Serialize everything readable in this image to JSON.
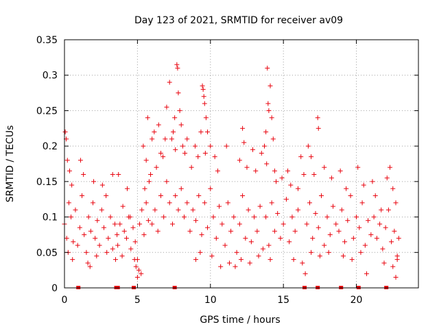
{
  "chart_data": {
    "type": "scatter",
    "title": "Day 123 of 2021, SRMTID for receiver av09",
    "xlabel": "GPS time / hours",
    "ylabel": "SRMTID / TECUs",
    "xlim": [
      0,
      24.25
    ],
    "ylim": [
      0,
      0.35
    ],
    "x_ticks": [
      0,
      5,
      10,
      15,
      20
    ],
    "x_tick_labels": [
      "0",
      "5",
      "10",
      "15",
      "20"
    ],
    "y_ticks": [
      0,
      0.05,
      0.1,
      0.15,
      0.2,
      0.25,
      0.3,
      0.35
    ],
    "y_tick_labels": [
      "0",
      "0.05",
      "0.1",
      "0.15",
      "0.2",
      "0.25",
      "0.3",
      "0.35"
    ],
    "grid": true,
    "marker": "plus",
    "marker_color": "#e8000b",
    "grid_color": "#a0a0a0",
    "series": [
      {
        "name": "SRMTID",
        "points": [
          [
            0.0,
            0.09
          ],
          [
            0.15,
            0.07
          ],
          [
            0.3,
            0.12
          ],
          [
            0.45,
            0.1
          ],
          [
            0.6,
            0.065
          ],
          [
            0.75,
            0.11
          ],
          [
            0.9,
            0.06
          ],
          [
            1.05,
            0.085
          ],
          [
            1.2,
            0.13
          ],
          [
            1.35,
            0.075
          ],
          [
            1.5,
            0.05
          ],
          [
            1.65,
            0.1
          ],
          [
            1.8,
            0.08
          ],
          [
            1.95,
            0.12
          ],
          [
            2.1,
            0.07
          ],
          [
            2.25,
            0.095
          ],
          [
            2.4,
            0.06
          ],
          [
            2.55,
            0.11
          ],
          [
            2.7,
            0.085
          ],
          [
            2.85,
            0.13
          ],
          [
            3.0,
            0.07
          ],
          [
            3.15,
            0.1
          ],
          [
            3.3,
            0.055
          ],
          [
            3.45,
            0.09
          ],
          [
            3.6,
            0.075
          ],
          [
            0.05,
            0.22
          ],
          [
            0.12,
            0.21
          ],
          [
            0.2,
            0.18
          ],
          [
            0.35,
            0.165
          ],
          [
            0.5,
            0.145
          ],
          [
            1.1,
            0.18
          ],
          [
            1.3,
            0.16
          ],
          [
            2.0,
            0.15
          ],
          [
            2.6,
            0.145
          ],
          [
            3.3,
            0.16
          ],
          [
            0.25,
            0.05
          ],
          [
            0.55,
            0.04
          ],
          [
            1.6,
            0.035
          ],
          [
            1.75,
            0.03
          ],
          [
            2.2,
            0.045
          ],
          [
            2.9,
            0.05
          ],
          [
            3.5,
            0.04
          ],
          [
            3.65,
            0.06
          ],
          [
            3.8,
            0.09
          ],
          [
            3.95,
            0.045
          ],
          [
            4.1,
            0.08
          ],
          [
            4.25,
            0.07
          ],
          [
            4.4,
            0.1
          ],
          [
            4.55,
            0.055
          ],
          [
            4.7,
            0.085
          ],
          [
            4.85,
            0.065
          ],
          [
            5.0,
            0.04
          ],
          [
            5.15,
            0.09
          ],
          [
            5.3,
            0.11
          ],
          [
            5.45,
            0.075
          ],
          [
            5.6,
            0.12
          ],
          [
            5.75,
            0.095
          ],
          [
            3.7,
            0.16
          ],
          [
            4.0,
            0.115
          ],
          [
            4.3,
            0.14
          ],
          [
            4.5,
            0.1
          ],
          [
            5.5,
            0.14
          ],
          [
            5.8,
            0.15
          ],
          [
            4.9,
            0.03
          ],
          [
            5.0,
            0.015
          ],
          [
            5.1,
            0.025
          ],
          [
            5.25,
            0.02
          ],
          [
            4.8,
            0.04
          ],
          [
            5.4,
            0.2
          ],
          [
            5.6,
            0.18
          ],
          [
            5.7,
            0.24
          ],
          [
            5.9,
            0.16
          ],
          [
            6.0,
            0.21
          ],
          [
            6.15,
            0.22
          ],
          [
            6.3,
            0.17
          ],
          [
            6.45,
            0.23
          ],
          [
            6.6,
            0.19
          ],
          [
            6.75,
            0.185
          ],
          [
            6.9,
            0.21
          ],
          [
            6.0,
            0.09
          ],
          [
            6.2,
            0.11
          ],
          [
            6.4,
            0.08
          ],
          [
            6.6,
            0.13
          ],
          [
            6.8,
            0.1
          ],
          [
            7.0,
            0.15
          ],
          [
            7.2,
            0.12
          ],
          [
            7.4,
            0.09
          ],
          [
            7.6,
            0.13
          ],
          [
            7.8,
            0.11
          ],
          [
            8.0,
            0.14
          ],
          [
            8.2,
            0.1
          ],
          [
            8.4,
            0.12
          ],
          [
            8.6,
            0.08
          ],
          [
            7.0,
            0.255
          ],
          [
            7.2,
            0.29
          ],
          [
            7.45,
            0.22
          ],
          [
            7.55,
            0.24
          ],
          [
            7.7,
            0.315
          ],
          [
            7.75,
            0.31
          ],
          [
            7.8,
            0.275
          ],
          [
            7.9,
            0.25
          ],
          [
            8.0,
            0.23
          ],
          [
            8.1,
            0.2
          ],
          [
            8.25,
            0.19
          ],
          [
            8.4,
            0.21
          ],
          [
            7.35,
            0.21
          ],
          [
            7.6,
            0.195
          ],
          [
            8.8,
            0.11
          ],
          [
            9.0,
            0.095
          ],
          [
            9.2,
            0.13
          ],
          [
            9.4,
            0.075
          ],
          [
            9.6,
            0.12
          ],
          [
            9.8,
            0.085
          ],
          [
            10.0,
            0.14
          ],
          [
            10.2,
            0.1
          ],
          [
            10.4,
            0.07
          ],
          [
            10.6,
            0.115
          ],
          [
            10.8,
            0.09
          ],
          [
            11.0,
            0.06
          ],
          [
            8.7,
            0.17
          ],
          [
            8.95,
            0.2
          ],
          [
            9.15,
            0.185
          ],
          [
            9.35,
            0.22
          ],
          [
            9.45,
            0.285
          ],
          [
            9.5,
            0.28
          ],
          [
            9.55,
            0.27
          ],
          [
            9.6,
            0.26
          ],
          [
            9.7,
            0.24
          ],
          [
            9.8,
            0.22
          ],
          [
            10.0,
            0.2
          ],
          [
            10.3,
            0.185
          ],
          [
            10.5,
            0.165
          ],
          [
            9.65,
            0.19
          ],
          [
            9.0,
            0.04
          ],
          [
            9.3,
            0.05
          ],
          [
            10.1,
            0.045
          ],
          [
            10.7,
            0.03
          ],
          [
            11.2,
            0.12
          ],
          [
            11.4,
            0.08
          ],
          [
            11.6,
            0.1
          ],
          [
            11.8,
            0.05
          ],
          [
            12.0,
            0.09
          ],
          [
            12.2,
            0.13
          ],
          [
            12.4,
            0.07
          ],
          [
            12.6,
            0.11
          ],
          [
            12.8,
            0.065
          ],
          [
            13.0,
            0.1
          ],
          [
            13.2,
            0.08
          ],
          [
            13.4,
            0.115
          ],
          [
            13.6,
            0.055
          ],
          [
            11.1,
            0.2
          ],
          [
            12.0,
            0.18
          ],
          [
            12.2,
            0.225
          ],
          [
            12.3,
            0.205
          ],
          [
            12.5,
            0.17
          ],
          [
            12.9,
            0.195
          ],
          [
            13.1,
            0.165
          ],
          [
            13.5,
            0.19
          ],
          [
            11.3,
            0.035
          ],
          [
            11.7,
            0.03
          ],
          [
            12.1,
            0.04
          ],
          [
            12.7,
            0.035
          ],
          [
            13.3,
            0.045
          ],
          [
            13.7,
            0.2
          ],
          [
            13.8,
            0.22
          ],
          [
            13.9,
            0.31
          ],
          [
            13.95,
            0.26
          ],
          [
            14.0,
            0.25
          ],
          [
            14.1,
            0.285
          ],
          [
            14.2,
            0.24
          ],
          [
            14.3,
            0.21
          ],
          [
            13.85,
            0.175
          ],
          [
            14.4,
            0.165
          ],
          [
            13.8,
            0.1
          ],
          [
            14.0,
            0.06
          ],
          [
            14.2,
            0.12
          ],
          [
            14.4,
            0.08
          ],
          [
            14.6,
            0.105
          ],
          [
            14.8,
            0.07
          ],
          [
            15.0,
            0.09
          ],
          [
            15.2,
            0.125
          ],
          [
            15.4,
            0.065
          ],
          [
            15.6,
            0.1
          ],
          [
            15.8,
            0.08
          ],
          [
            16.0,
            0.11
          ],
          [
            14.5,
            0.15
          ],
          [
            14.9,
            0.155
          ],
          [
            15.3,
            0.165
          ],
          [
            15.5,
            0.145
          ],
          [
            16.0,
            0.14
          ],
          [
            16.2,
            0.185
          ],
          [
            16.4,
            0.16
          ],
          [
            14.1,
            0.04
          ],
          [
            15.7,
            0.04
          ],
          [
            16.3,
            0.035
          ],
          [
            16.6,
            0.09
          ],
          [
            16.8,
            0.12
          ],
          [
            17.0,
            0.07
          ],
          [
            17.2,
            0.105
          ],
          [
            17.4,
            0.085
          ],
          [
            17.6,
            0.13
          ],
          [
            17.8,
            0.06
          ],
          [
            18.0,
            0.1
          ],
          [
            18.2,
            0.075
          ],
          [
            18.4,
            0.115
          ],
          [
            18.6,
            0.09
          ],
          [
            16.7,
            0.2
          ],
          [
            16.9,
            0.185
          ],
          [
            17.1,
            0.16
          ],
          [
            17.35,
            0.24
          ],
          [
            17.4,
            0.225
          ],
          [
            17.8,
            0.17
          ],
          [
            18.3,
            0.155
          ],
          [
            16.5,
            0.02
          ],
          [
            16.9,
            0.05
          ],
          [
            17.5,
            0.045
          ],
          [
            18.1,
            0.05
          ],
          [
            18.8,
            0.08
          ],
          [
            19.0,
            0.11
          ],
          [
            19.2,
            0.065
          ],
          [
            19.4,
            0.095
          ],
          [
            19.6,
            0.13
          ],
          [
            19.8,
            0.07
          ],
          [
            20.0,
            0.1
          ],
          [
            20.2,
            0.085
          ],
          [
            20.4,
            0.12
          ],
          [
            20.6,
            0.06
          ],
          [
            20.8,
            0.095
          ],
          [
            21.0,
            0.075
          ],
          [
            18.9,
            0.165
          ],
          [
            19.3,
            0.14
          ],
          [
            20.1,
            0.17
          ],
          [
            20.5,
            0.145
          ],
          [
            21.1,
            0.15
          ],
          [
            19.1,
            0.045
          ],
          [
            19.7,
            0.04
          ],
          [
            20.3,
            0.05
          ],
          [
            20.7,
            0.02
          ],
          [
            21.2,
            0.1
          ],
          [
            21.4,
            0.07
          ],
          [
            21.6,
            0.09
          ],
          [
            21.8,
            0.055
          ],
          [
            22.0,
            0.085
          ],
          [
            22.2,
            0.11
          ],
          [
            22.4,
            0.065
          ],
          [
            22.6,
            0.08
          ],
          [
            22.8,
            0.045
          ],
          [
            22.9,
            0.07
          ],
          [
            21.3,
            0.13
          ],
          [
            21.7,
            0.11
          ],
          [
            22.1,
            0.155
          ],
          [
            22.3,
            0.17
          ],
          [
            22.5,
            0.14
          ],
          [
            22.7,
            0.12
          ],
          [
            21.9,
            0.035
          ],
          [
            22.5,
            0.03
          ],
          [
            22.7,
            0.015
          ],
          [
            22.8,
            0.04
          ]
        ]
      },
      {
        "name": "gap-markers",
        "x": [
          0.95,
          3.55,
          3.65,
          4.75,
          7.55,
          16.45,
          17.35,
          18.95,
          20.15,
          22.05
        ]
      }
    ]
  }
}
